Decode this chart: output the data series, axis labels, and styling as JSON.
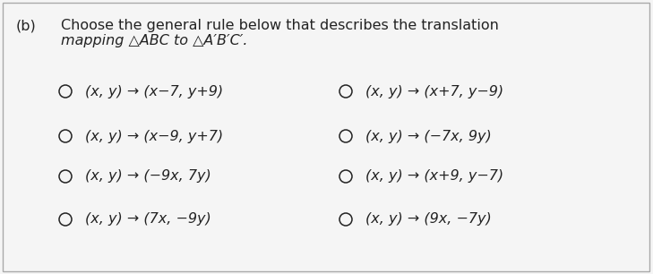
{
  "part_label": "(b)",
  "question_line1": "Choose the general rule below that describes the translation",
  "question_line2": "mapping △ABC to △A′B′C′.",
  "options": [
    [
      "(x, y) → (x−7, y+9)",
      "(x, y) → (x+7, y−9)"
    ],
    [
      "(x, y) → (x−9, y+7)",
      "(x, y) → (−7x, 9y)"
    ],
    [
      "(x, y) → (−9x, 7y)",
      "(x, y) → (x+9, y−7)"
    ],
    [
      "(x, y) → (7x, −9y)",
      "(x, y) → (9x, −7y)"
    ]
  ],
  "bg_color": "#f5f5f5",
  "text_color": "#222222",
  "border_color": "#aaaaaa",
  "font_size_question": 11.5,
  "font_size_options": 11.5,
  "fig_width": 7.29,
  "fig_height": 3.06
}
